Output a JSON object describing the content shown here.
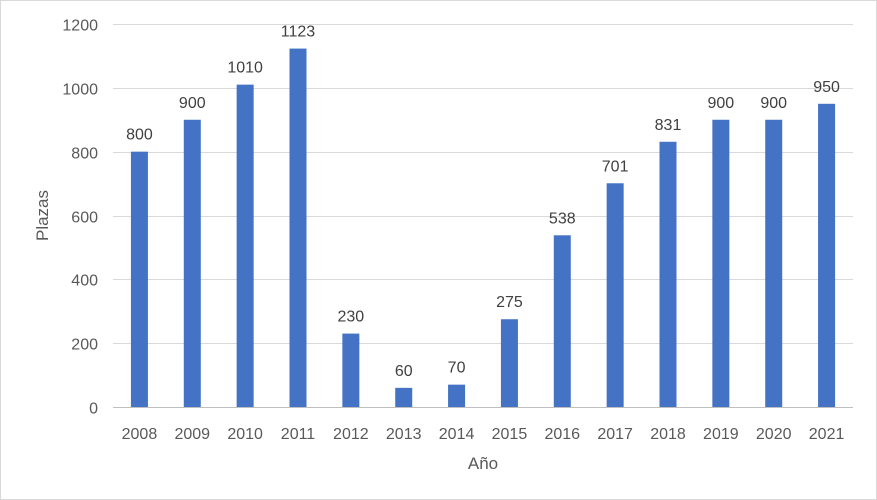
{
  "chart_data": {
    "type": "bar",
    "title": "",
    "xlabel": "Año",
    "ylabel": "Plazas",
    "categories": [
      "2008",
      "2009",
      "2010",
      "2011",
      "2012",
      "2013",
      "2014",
      "2015",
      "2016",
      "2017",
      "2018",
      "2019",
      "2020",
      "2021"
    ],
    "values": [
      800,
      900,
      1010,
      1123,
      230,
      60,
      70,
      275,
      538,
      701,
      831,
      900,
      900,
      950
    ],
    "ylim": [
      0,
      1200
    ],
    "yticks": [
      0,
      200,
      400,
      600,
      800,
      1000,
      1200
    ],
    "grid": true,
    "legend": "none",
    "data_labels": true,
    "colors": {
      "bar": "#4472c4"
    }
  }
}
